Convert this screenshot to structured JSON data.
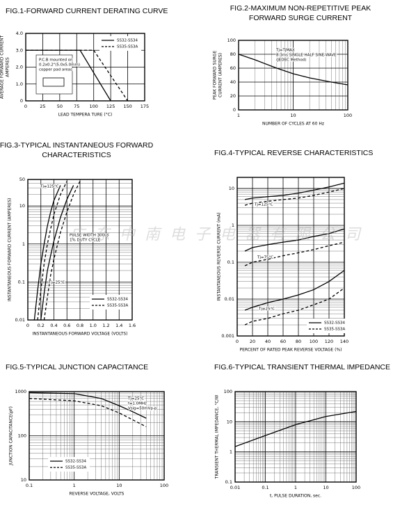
{
  "chart_data": [
    {
      "type": "line",
      "title": [
        "FIG.1-FORWARD CURRENT DERATING CURVE"
      ],
      "xlabel": "LEAD TEMPERA TURE (°C)",
      "ylabel": [
        "AVERAGE FORWARD CURRENT",
        "AMPERES"
      ],
      "xlim": [
        0,
        175
      ],
      "xticks": [
        0,
        25,
        50,
        75,
        100,
        125,
        150,
        175
      ],
      "ylim": [
        0,
        4
      ],
      "yticks": [
        0,
        {
          "value": 1,
          "label": "1.0"
        },
        {
          "value": 2,
          "label": "2.0"
        },
        {
          "value": 3,
          "label": "3.0"
        },
        {
          "value": 4,
          "label": "4.0"
        }
      ],
      "grid": true,
      "color": "#000000",
      "series": [
        {
          "dash": false,
          "x": [
            0,
            80,
            125
          ],
          "values": [
            3,
            3,
            0
          ]
        },
        {
          "dash": true,
          "x": [
            0,
            100,
            150
          ],
          "values": [
            3,
            3,
            0
          ]
        }
      ],
      "legend": [
        {
          "name": "SS32-SS34",
          "dash": false
        },
        {
          "name": "SS35-SS3A",
          "dash": true
        }
      ],
      "annotations": [
        [
          "P.C.B mounted on",
          "0.2x0.2\"(5.0x5.0mm)",
          "copper pad areas"
        ]
      ]
    },
    {
      "type": "line",
      "title": [
        "FIG.2-MAXIMUM NON-REPETITIVE PEAK",
        "FORWARD SURGE CURRENT"
      ],
      "xlabel": "NUMBER OF CYCLES AT 60 Hz",
      "ylabel": [
        "PEAK FORWARD SURGE",
        "CURRENT (AMPERES)"
      ],
      "xlog": true,
      "xlim": [
        1,
        100
      ],
      "xticks": [
        1,
        10,
        100
      ],
      "ylim": [
        0,
        100
      ],
      "yticks": [
        0,
        20,
        40,
        60,
        80,
        100
      ],
      "grid": true,
      "minor_grid": true,
      "color": "#000000",
      "series": [
        {
          "dash": false,
          "x": [
            1,
            2,
            5,
            10,
            20,
            50,
            100
          ],
          "values": [
            80,
            72,
            60,
            52,
            46,
            40,
            36
          ]
        }
      ],
      "annotations": [
        [
          "Tj=TjMAX",
          "8.3ms SINGLE HALF SINE-WAVE",
          "(JEDEC Method)"
        ]
      ]
    },
    {
      "type": "line",
      "title": [
        "FIG.3-TYPICAL INSTANTANEOUS FORWARD",
        "CHARACTERISTICS"
      ],
      "xlabel": "INSTANTANEOUS FORWARD VOLTAGE (VOLTS)",
      "ylabel": [
        "INSTANTANEOUS FORWARD CURRENT (AMPERES)"
      ],
      "xlim": [
        0,
        1.6
      ],
      "xticks": [
        0,
        0.2,
        0.4,
        0.6,
        0.8,
        {
          "value": 1,
          "label": "1.0"
        },
        1.2,
        1.4,
        1.6
      ],
      "ylog": true,
      "ylim": [
        0.01,
        50
      ],
      "yticks": [
        0.01,
        0.1,
        1,
        10,
        50
      ],
      "grid": true,
      "minor_grid": true,
      "color": "#000000",
      "series": [
        {
          "dash": false,
          "x": [
            0.1,
            0.15,
            0.2,
            0.25,
            0.3,
            0.35,
            0.4,
            0.5
          ],
          "values": [
            0.01,
            0.06,
            0.3,
            1,
            3,
            7,
            14,
            35
          ]
        },
        {
          "dash": true,
          "x": [
            0.15,
            0.2,
            0.25,
            0.3,
            0.35,
            0.4,
            0.5,
            0.6
          ],
          "values": [
            0.01,
            0.06,
            0.3,
            1,
            2.5,
            6,
            20,
            45
          ]
        },
        {
          "dash": false,
          "x": [
            0.2,
            0.25,
            0.3,
            0.35,
            0.4,
            0.5,
            0.6,
            0.7
          ],
          "values": [
            0.01,
            0.05,
            0.2,
            0.5,
            1.2,
            5,
            15,
            35
          ]
        },
        {
          "dash": true,
          "x": [
            0.25,
            0.3,
            0.35,
            0.4,
            0.5,
            0.6,
            0.7,
            0.8
          ],
          "values": [
            0.01,
            0.04,
            0.15,
            0.4,
            2,
            7,
            20,
            45
          ]
        }
      ],
      "legend": [
        {
          "name": "SS32-SS34",
          "dash": false
        },
        {
          "name": "SS35-SS3A",
          "dash": true
        }
      ],
      "annotations": [
        [
          "Tj=125°C"
        ],
        [
          "Tj=25°C"
        ],
        [
          "PULSE WIDTH 300us",
          "1% DUTY CYCLE"
        ]
      ]
    },
    {
      "type": "line",
      "title": [
        "FIG.4-TYPICAL REVERSE CHARACTERISTICS"
      ],
      "xlabel": "PERCENT OF RATED PEAK REVERSE VOLTAGE (%)",
      "ylabel": [
        "INSTANTANEOUS REVERSE CURRENT (mA)"
      ],
      "xlim": [
        0,
        140
      ],
      "xticks": [
        0,
        20,
        40,
        60,
        80,
        100,
        120,
        140
      ],
      "ylog": true,
      "ylim": [
        0.001,
        20
      ],
      "yticks": [
        0.001,
        0.01,
        0.1,
        1,
        10
      ],
      "grid": true,
      "minor_grid": true,
      "color": "#000000",
      "series": [
        {
          "dash": false,
          "x": [
            10,
            20,
            40,
            60,
            80,
            100,
            120,
            140
          ],
          "values": [
            5,
            5.5,
            6,
            6.5,
            7.5,
            9,
            11,
            14
          ]
        },
        {
          "dash": true,
          "x": [
            10,
            20,
            40,
            60,
            80,
            100,
            120,
            140
          ],
          "values": [
            3.5,
            4,
            4.5,
            5,
            5.5,
            6.5,
            8,
            10
          ]
        },
        {
          "dash": false,
          "x": [
            10,
            20,
            40,
            60,
            80,
            100,
            120,
            140
          ],
          "values": [
            0.2,
            0.25,
            0.3,
            0.35,
            0.4,
            0.5,
            0.6,
            0.8
          ]
        },
        {
          "dash": true,
          "x": [
            10,
            20,
            40,
            60,
            80,
            100,
            120,
            140
          ],
          "values": [
            0.08,
            0.1,
            0.12,
            0.15,
            0.18,
            0.22,
            0.28,
            0.35
          ]
        },
        {
          "dash": false,
          "x": [
            10,
            20,
            40,
            60,
            80,
            100,
            120,
            140
          ],
          "values": [
            0.005,
            0.006,
            0.008,
            0.01,
            0.013,
            0.018,
            0.03,
            0.06
          ]
        },
        {
          "dash": true,
          "x": [
            10,
            20,
            40,
            60,
            80,
            100,
            120,
            140
          ],
          "values": [
            0.002,
            0.0025,
            0.003,
            0.004,
            0.005,
            0.007,
            0.01,
            0.02
          ]
        }
      ],
      "legend": [
        {
          "name": "SS32-SS34",
          "dash": false
        },
        {
          "name": "SS35-SS3A",
          "dash": true
        }
      ],
      "annotations": [
        [
          "Tj=125°C"
        ],
        [
          "Tj=75°C"
        ],
        [
          "Tj=25°C"
        ]
      ]
    },
    {
      "type": "line",
      "title": [
        "FIG.5-TYPICAL JUNCTION CAPACITANCE"
      ],
      "xlabel": "REVERSE VOLTAGE, VOLTS",
      "ylabel": [
        "JUNCTION CAPACITANCE(pF)"
      ],
      "xlog": true,
      "xlim": [
        0.1,
        100
      ],
      "xticks": [
        0.1,
        1,
        10,
        100
      ],
      "ylog": true,
      "ylim": [
        10,
        1000
      ],
      "yticks": [
        10,
        100,
        1000
      ],
      "grid": true,
      "minor_grid": true,
      "color": "#000000",
      "series": [
        {
          "dash": false,
          "x": [
            0.1,
            1,
            4,
            10,
            20,
            40
          ],
          "values": [
            950,
            900,
            700,
            480,
            350,
            250
          ]
        },
        {
          "dash": true,
          "x": [
            0.1,
            1,
            4,
            10,
            20,
            40
          ],
          "values": [
            700,
            620,
            480,
            330,
            230,
            160
          ]
        }
      ],
      "legend": [
        {
          "name": "SS32-SS34",
          "dash": false
        },
        {
          "name": "SS35-SS3A",
          "dash": true
        }
      ],
      "annotations": [
        [
          "Tj=25°C",
          "f=1.0MHz",
          "Vsig=50mVp-p"
        ]
      ]
    },
    {
      "type": "line",
      "title": [
        "FIG.6-TYPICAL TRANSIENT THERMAL IMPEDANCE"
      ],
      "xlabel": "t, PULSE DURATION, sec.",
      "ylabel": [
        "TRANSIENT THERMAL IMPEDANCE, °C/W"
      ],
      "xlog": true,
      "xlim": [
        0.01,
        100
      ],
      "xticks": [
        0.01,
        0.1,
        1,
        10,
        100
      ],
      "ylog": true,
      "ylim": [
        0.1,
        100
      ],
      "yticks": [
        0.1,
        1,
        10,
        100
      ],
      "grid": true,
      "minor_grid": true,
      "color": "#000000",
      "series": [
        {
          "dash": false,
          "x": [
            0.01,
            0.1,
            1,
            10,
            100
          ],
          "values": [
            1.5,
            3.5,
            8,
            15,
            22
          ]
        }
      ]
    }
  ],
  "watermark": "广东中南电子电器有限公司"
}
